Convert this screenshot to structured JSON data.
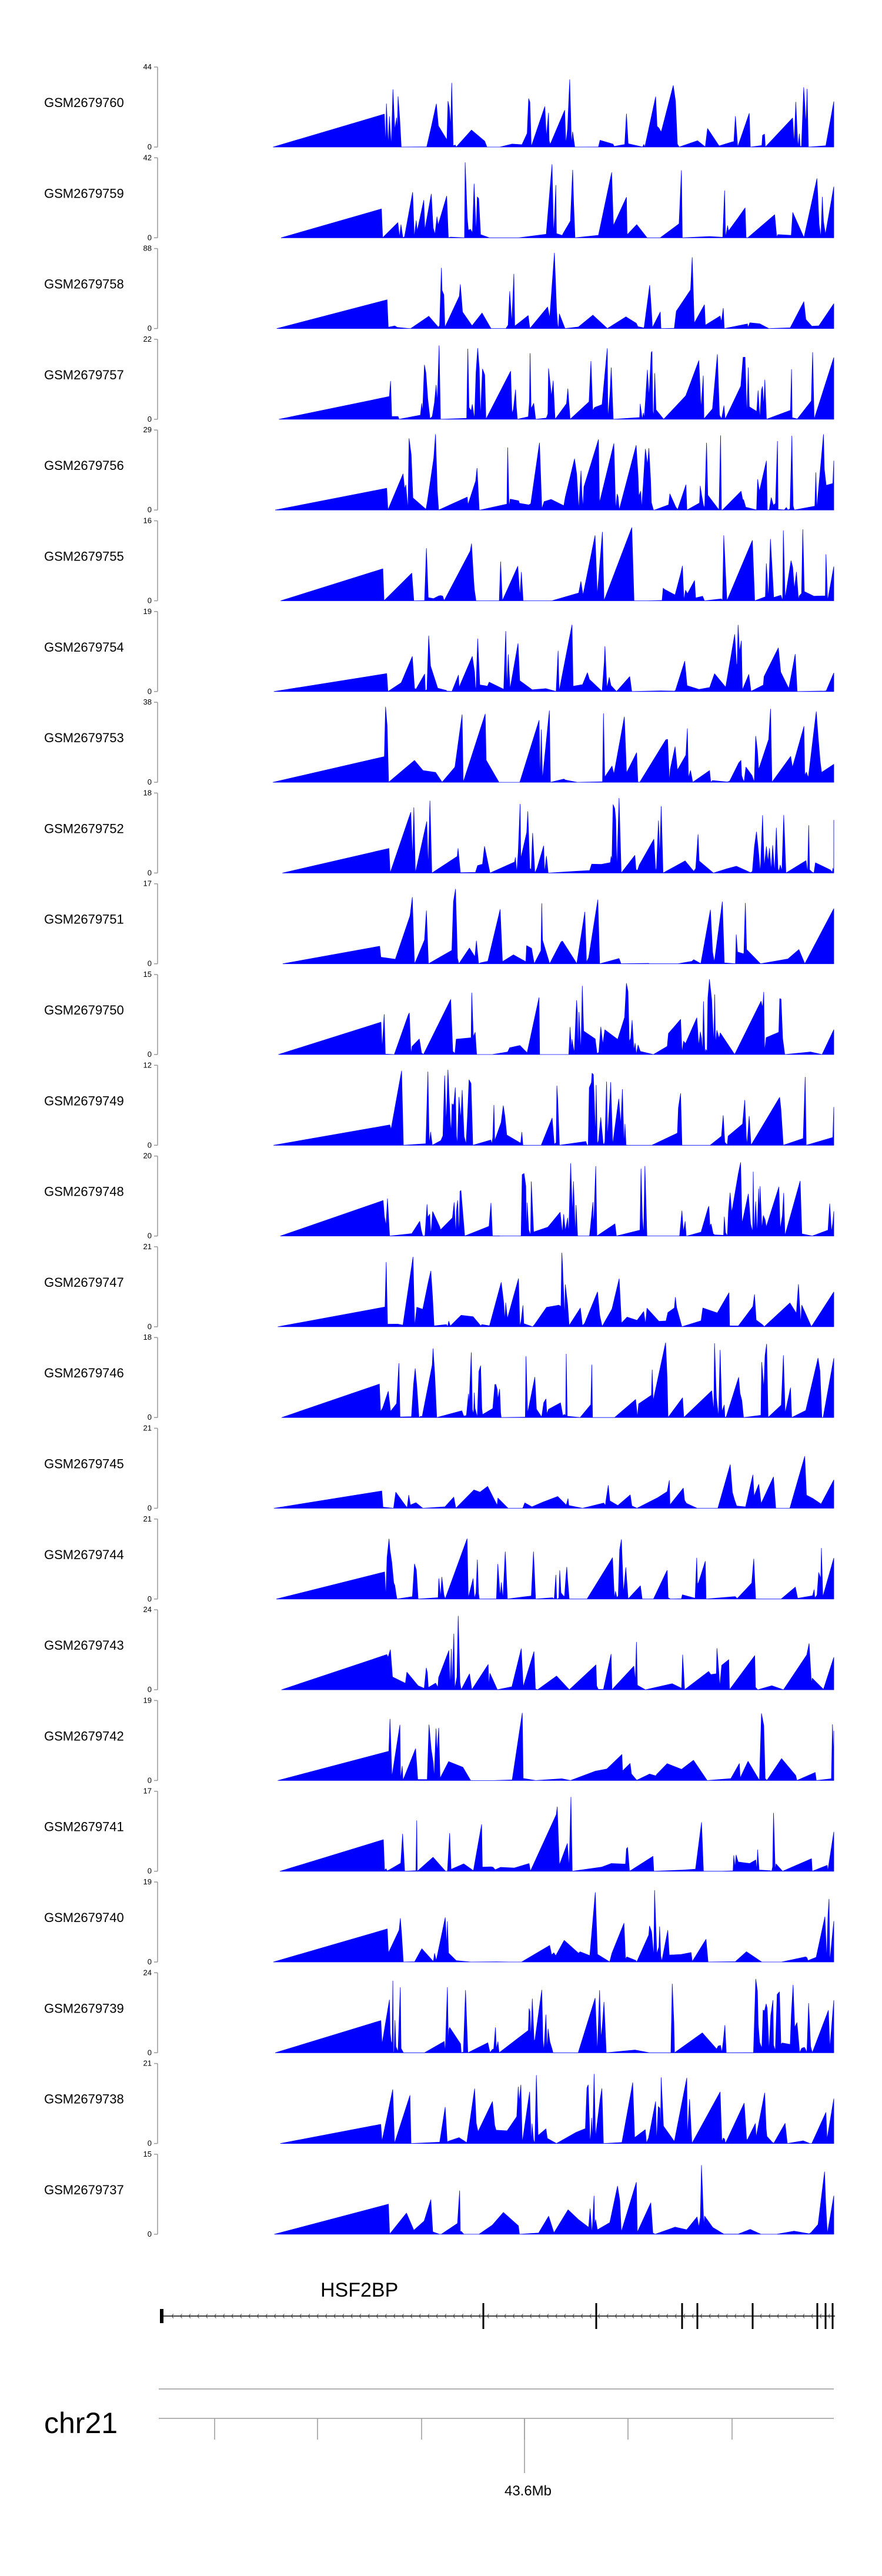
{
  "colors": {
    "signal": "#0000ff",
    "axis": "#999999",
    "text": "#000000",
    "gene": "#000000"
  },
  "chart_data": {
    "type": "area",
    "title": "",
    "tracks": [
      {
        "name": "GSM2679760",
        "ymin": 0,
        "ymax": 44,
        "seed": 760
      },
      {
        "name": "GSM2679759",
        "ymin": 0,
        "ymax": 42,
        "seed": 759
      },
      {
        "name": "GSM2679758",
        "ymin": 0,
        "ymax": 88,
        "seed": 758
      },
      {
        "name": "GSM2679757",
        "ymin": 0,
        "ymax": 22,
        "seed": 757
      },
      {
        "name": "GSM2679756",
        "ymin": 0,
        "ymax": 29,
        "seed": 756
      },
      {
        "name": "GSM2679755",
        "ymin": 0,
        "ymax": 16,
        "seed": 755
      },
      {
        "name": "GSM2679754",
        "ymin": 0,
        "ymax": 19,
        "seed": 754
      },
      {
        "name": "GSM2679753",
        "ymin": 0,
        "ymax": 38,
        "seed": 753
      },
      {
        "name": "GSM2679752",
        "ymin": 0,
        "ymax": 18,
        "seed": 752
      },
      {
        "name": "GSM2679751",
        "ymin": 0,
        "ymax": 17,
        "seed": 751
      },
      {
        "name": "GSM2679750",
        "ymin": 0,
        "ymax": 15,
        "seed": 750
      },
      {
        "name": "GSM2679749",
        "ymin": 0,
        "ymax": 12,
        "seed": 749
      },
      {
        "name": "GSM2679748",
        "ymin": 0,
        "ymax": 20,
        "seed": 748
      },
      {
        "name": "GSM2679747",
        "ymin": 0,
        "ymax": 21,
        "seed": 747
      },
      {
        "name": "GSM2679746",
        "ymin": 0,
        "ymax": 18,
        "seed": 746
      },
      {
        "name": "GSM2679745",
        "ymin": 0,
        "ymax": 21,
        "seed": 745
      },
      {
        "name": "GSM2679744",
        "ymin": 0,
        "ymax": 21,
        "seed": 744
      },
      {
        "name": "GSM2679743",
        "ymin": 0,
        "ymax": 24,
        "seed": 743
      },
      {
        "name": "GSM2679742",
        "ymin": 0,
        "ymax": 19,
        "seed": 742
      },
      {
        "name": "GSM2679741",
        "ymin": 0,
        "ymax": 17,
        "seed": 741
      },
      {
        "name": "GSM2679740",
        "ymin": 0,
        "ymax": 19,
        "seed": 740
      },
      {
        "name": "GSM2679739",
        "ymin": 0,
        "ymax": 24,
        "seed": 739
      },
      {
        "name": "GSM2679738",
        "ymin": 0,
        "ymax": 21,
        "seed": 738
      },
      {
        "name": "GSM2679737",
        "ymin": 0,
        "ymax": 15,
        "seed": 737
      }
    ],
    "gene": {
      "name": "HSF2BP",
      "strand": "-"
    },
    "chromosome": {
      "name": "chr21",
      "tick_label": "43.6Mb"
    }
  }
}
